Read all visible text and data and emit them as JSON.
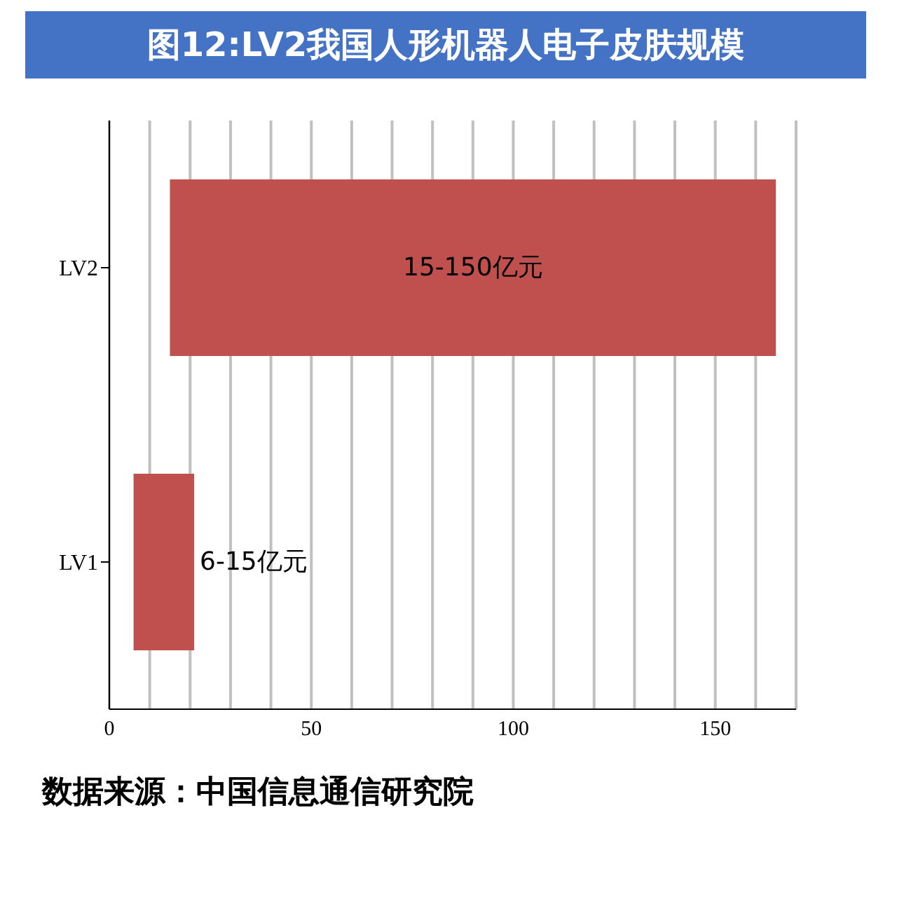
{
  "chart_data": {
    "type": "bar",
    "title": "图12:LV2我国人形机器人电子皮肤规模",
    "orientation": "horizontal",
    "categories": [
      "LV2",
      "LV1"
    ],
    "base": [
      15,
      6
    ],
    "values": [
      150,
      15
    ],
    "value_labels": [
      "15-150亿元",
      "6-15亿元"
    ],
    "color": "#c0504d",
    "xlim": [
      0,
      170
    ],
    "xticks": [
      0,
      {
        "value": 10,
        "label": null
      },
      {
        "value": 20,
        "label": null
      },
      {
        "value": 30,
        "label": null
      },
      {
        "value": 40,
        "label": null
      },
      50,
      {
        "value": 60,
        "label": null
      },
      {
        "value": 70,
        "label": null
      },
      {
        "value": 80,
        "label": null
      },
      {
        "value": 90,
        "label": null
      },
      100,
      {
        "value": 110,
        "label": null
      },
      {
        "value": 120,
        "label": null
      },
      {
        "value": 130,
        "label": null
      },
      {
        "value": 140,
        "label": null
      },
      150,
      {
        "value": 160,
        "label": null
      },
      {
        "value": 170,
        "label": null
      }
    ],
    "grid": "x",
    "annotations": [
      "数据来源：中国信息通信研究院"
    ]
  }
}
